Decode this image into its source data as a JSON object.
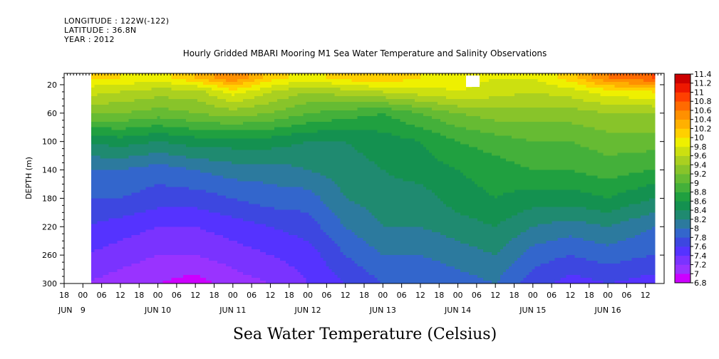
{
  "header": {
    "longitude": "LONGITUDE : 122W(-122)",
    "latitude": "LATITUDE : 36.8N",
    "year": "YEAR : 2012"
  },
  "chart_data": {
    "type": "heatmap",
    "title": "Hourly Gridded MBARI Mooring M1 Sea Water Temperature and Salinity Observations",
    "xlabel": "Sea Water Temperature (Celsius)",
    "ylabel": "DEPTH (m)",
    "x_start": "JUN 8 18:00",
    "x_end": "JUN 16 18:00",
    "data_start": "JUN 9 00:00",
    "data_end": "JUN 16 15:00",
    "ylim": [
      300,
      4
    ],
    "y_ticks": [
      20,
      60,
      100,
      140,
      180,
      220,
      260,
      300
    ],
    "hour_ticks": [
      "18",
      "00",
      "06",
      "12",
      "18",
      "00",
      "06",
      "12",
      "18",
      "00",
      "06",
      "12",
      "18",
      "00",
      "06",
      "12",
      "18",
      "00",
      "06",
      "12",
      "18",
      "00",
      "06",
      "12",
      "18",
      "00",
      "06",
      "12",
      "18",
      "00",
      "06",
      "12"
    ],
    "day_labels": [
      "JUN",
      "9",
      "JUN 10",
      "JUN 11",
      "JUN 12",
      "JUN 13",
      "JUN 14",
      "JUN 15",
      "JUN 16"
    ],
    "colorbar": {
      "levels": [
        6.8,
        7,
        7.2,
        7.4,
        7.6,
        7.8,
        8,
        8.2,
        8.4,
        8.6,
        8.8,
        9,
        9.2,
        9.4,
        9.6,
        9.8,
        10,
        10.2,
        10.4,
        10.6,
        10.8,
        11,
        11.2,
        11.4
      ],
      "labels": [
        "6.8",
        "7",
        "7.2",
        "7.4",
        "7.6",
        "7.8",
        "8",
        "8.2",
        "8.4",
        "8.6",
        "8.8",
        "9",
        "9.2",
        "9.4",
        "9.6",
        "9.8",
        "10",
        "10.2",
        "10.4",
        "10.6",
        "10.8",
        "11",
        "11.2",
        "11.4"
      ],
      "colors": [
        "#cc00ff",
        "#9933ff",
        "#7a33ff",
        "#5533ff",
        "#3d47e0",
        "#3366cc",
        "#2c7a9e",
        "#1f8a70",
        "#149150",
        "#20a040",
        "#44b03a",
        "#66bb33",
        "#88c42a",
        "#aad020",
        "#cce010",
        "#eef000",
        "#ffd000",
        "#ffb000",
        "#ff9000",
        "#ff6a00",
        "#ff4000",
        "#ee1800",
        "#cc0000"
      ]
    },
    "depth_profiles": [
      {
        "day": 9.0,
        "temps": [
          [
            10,
            10.0
          ],
          [
            30,
            9.7
          ],
          [
            60,
            9.2
          ],
          [
            100,
            8.4
          ],
          [
            140,
            8.0
          ],
          [
            180,
            7.8
          ],
          [
            220,
            7.6
          ],
          [
            260,
            7.4
          ],
          [
            300,
            7.2
          ]
        ]
      },
      {
        "day": 9.5,
        "temps": [
          [
            10,
            10.0
          ],
          [
            30,
            9.6
          ],
          [
            60,
            9.2
          ],
          [
            100,
            8.5
          ],
          [
            140,
            8.0
          ],
          [
            180,
            7.8
          ],
          [
            220,
            7.5
          ],
          [
            260,
            7.3
          ],
          [
            300,
            7.1
          ]
        ]
      },
      {
        "day": 10.0,
        "temps": [
          [
            10,
            9.9
          ],
          [
            30,
            9.5
          ],
          [
            60,
            9.1
          ],
          [
            100,
            8.4
          ],
          [
            140,
            7.9
          ],
          [
            180,
            7.7
          ],
          [
            220,
            7.4
          ],
          [
            260,
            7.2
          ],
          [
            300,
            7.0
          ]
        ]
      },
      {
        "day": 10.5,
        "temps": [
          [
            10,
            10.2
          ],
          [
            30,
            9.5
          ],
          [
            60,
            9.2
          ],
          [
            100,
            8.5
          ],
          [
            140,
            8.0
          ],
          [
            180,
            7.7
          ],
          [
            220,
            7.4
          ],
          [
            260,
            7.2
          ],
          [
            300,
            6.9
          ]
        ]
      },
      {
        "day": 11.0,
        "temps": [
          [
            10,
            10.6
          ],
          [
            30,
            9.9
          ],
          [
            60,
            9.3
          ],
          [
            100,
            8.5
          ],
          [
            140,
            8.1
          ],
          [
            180,
            7.8
          ],
          [
            220,
            7.5
          ],
          [
            260,
            7.3
          ],
          [
            300,
            7.1
          ]
        ]
      },
      {
        "day": 11.5,
        "temps": [
          [
            10,
            10.1
          ],
          [
            30,
            9.6
          ],
          [
            60,
            9.2
          ],
          [
            100,
            8.5
          ],
          [
            140,
            8.1
          ],
          [
            180,
            7.9
          ],
          [
            220,
            7.6
          ],
          [
            260,
            7.4
          ],
          [
            300,
            7.2
          ]
        ]
      },
      {
        "day": 12.0,
        "temps": [
          [
            10,
            9.9
          ],
          [
            30,
            9.4
          ],
          [
            60,
            9.0
          ],
          [
            100,
            8.4
          ],
          [
            140,
            8.2
          ],
          [
            180,
            7.9
          ],
          [
            220,
            7.7
          ],
          [
            260,
            7.5
          ],
          [
            300,
            7.4
          ]
        ]
      },
      {
        "day": 12.5,
        "temps": [
          [
            10,
            10.1
          ],
          [
            30,
            9.5
          ],
          [
            60,
            8.9
          ],
          [
            100,
            8.4
          ],
          [
            140,
            8.3
          ],
          [
            180,
            8.2
          ],
          [
            220,
            8.0
          ],
          [
            260,
            7.8
          ],
          [
            300,
            7.6
          ]
        ]
      },
      {
        "day": 13.0,
        "temps": [
          [
            10,
            10.2
          ],
          [
            30,
            9.6
          ],
          [
            60,
            8.8
          ],
          [
            100,
            8.5
          ],
          [
            140,
            8.4
          ],
          [
            180,
            8.3
          ],
          [
            220,
            8.2
          ],
          [
            260,
            8.0
          ],
          [
            300,
            7.8
          ]
        ]
      },
      {
        "day": 13.5,
        "temps": [
          [
            10,
            10.0
          ],
          [
            30,
            9.7
          ],
          [
            60,
            9.0
          ],
          [
            100,
            8.6
          ],
          [
            140,
            8.5
          ],
          [
            180,
            8.3
          ],
          [
            220,
            8.2
          ],
          [
            260,
            8.0
          ],
          [
            300,
            7.8
          ]
        ]
      },
      {
        "day": 14.0,
        "temps": [
          [
            10,
            9.9
          ],
          [
            30,
            9.8
          ],
          [
            60,
            9.2
          ],
          [
            100,
            8.8
          ],
          [
            140,
            8.6
          ],
          [
            180,
            8.5
          ],
          [
            220,
            8.3
          ],
          [
            260,
            8.1
          ],
          [
            300,
            7.9
          ]
        ]
      },
      {
        "day": 14.5,
        "temps": [
          [
            10,
            9.8
          ],
          [
            30,
            9.7
          ],
          [
            60,
            9.3
          ],
          [
            100,
            8.9
          ],
          [
            140,
            8.7
          ],
          [
            180,
            8.6
          ],
          [
            220,
            8.4
          ],
          [
            260,
            8.2
          ],
          [
            300,
            8.0
          ]
        ]
      },
      {
        "day": 15.0,
        "temps": [
          [
            10,
            9.8
          ],
          [
            30,
            9.6
          ],
          [
            60,
            9.3
          ],
          [
            100,
            9.0
          ],
          [
            140,
            8.8
          ],
          [
            180,
            8.5
          ],
          [
            220,
            8.2
          ],
          [
            260,
            7.9
          ],
          [
            300,
            7.7
          ]
        ]
      },
      {
        "day": 15.5,
        "temps": [
          [
            10,
            10.1
          ],
          [
            30,
            9.7
          ],
          [
            60,
            9.3
          ],
          [
            100,
            9.0
          ],
          [
            140,
            8.8
          ],
          [
            180,
            8.5
          ],
          [
            220,
            8.1
          ],
          [
            260,
            7.8
          ],
          [
            300,
            7.5
          ]
        ]
      },
      {
        "day": 16.0,
        "temps": [
          [
            10,
            10.6
          ],
          [
            30,
            9.9
          ],
          [
            60,
            9.4
          ],
          [
            100,
            9.1
          ],
          [
            140,
            8.9
          ],
          [
            180,
            8.6
          ],
          [
            220,
            8.2
          ],
          [
            260,
            7.9
          ],
          [
            300,
            7.6
          ]
        ]
      },
      {
        "day": 16.6,
        "temps": [
          [
            10,
            10.8
          ],
          [
            30,
            10.0
          ],
          [
            60,
            9.4
          ],
          [
            100,
            9.1
          ],
          [
            140,
            8.8
          ],
          [
            180,
            8.4
          ],
          [
            220,
            8.0
          ],
          [
            260,
            7.8
          ],
          [
            300,
            7.5
          ]
        ]
      }
    ]
  }
}
